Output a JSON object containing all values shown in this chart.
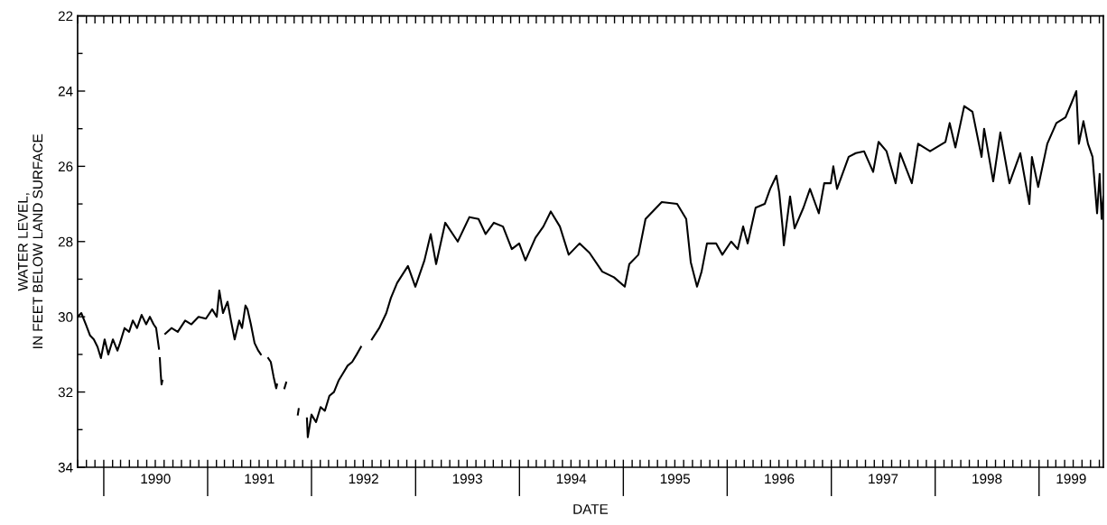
{
  "chart_data": {
    "type": "line",
    "xlabel": "DATE",
    "ylabel": "WATER LEVEL,\nIN FEET BELOW LAND SURFACE",
    "xlim": [
      "1989-10-01",
      "1999-08-15"
    ],
    "ylim": [
      34,
      22
    ],
    "yticks": [
      22,
      {
        "value": 23,
        "label": null
      },
      24,
      {
        "value": 25,
        "label": null
      },
      26,
      {
        "value": 27,
        "label": null
      },
      28,
      {
        "value": 29,
        "label": null
      },
      30,
      {
        "value": 31,
        "label": null
      },
      32,
      {
        "value": 33,
        "label": null
      },
      34
    ],
    "xticks": [
      {
        "value": "1990-01-01",
        "label": null
      },
      {
        "value": "1990-07-02",
        "label": "1990"
      },
      {
        "value": "1991-01-01",
        "label": null
      },
      {
        "value": "1991-07-02",
        "label": "1991"
      },
      {
        "value": "1992-01-01",
        "label": null
      },
      {
        "value": "1992-07-02",
        "label": "1992"
      },
      {
        "value": "1993-01-01",
        "label": null
      },
      {
        "value": "1993-07-02",
        "label": "1993"
      },
      {
        "value": "1994-01-01",
        "label": null
      },
      {
        "value": "1994-07-02",
        "label": "1994"
      },
      {
        "value": "1995-01-01",
        "label": null
      },
      {
        "value": "1995-07-02",
        "label": "1995"
      },
      {
        "value": "1996-01-01",
        "label": null
      },
      {
        "value": "1996-07-02",
        "label": "1996"
      },
      {
        "value": "1997-01-01",
        "label": null
      },
      {
        "value": "1997-07-02",
        "label": "1997"
      },
      {
        "value": "1998-01-01",
        "label": null
      },
      {
        "value": "1998-07-02",
        "label": "1998"
      },
      {
        "value": "1999-01-01",
        "label": null
      },
      {
        "value": "1999-04-24",
        "label": "1999"
      }
    ],
    "marker": "none",
    "line_style": "solid",
    "series": [
      {
        "color": "#000000",
        "x": [
          "1989-10-01",
          "1989-10-14",
          "1989-10-30",
          "1989-11-14",
          "1989-11-27",
          "1989-12-10",
          "1989-12-22",
          "1990-01-04",
          "1990-01-17",
          "1990-02-02",
          "1990-02-18",
          "1990-02-27",
          "1990-03-15",
          "1990-03-31",
          "1990-04-13",
          "1990-04-28",
          "1990-05-14",
          "1990-05-30",
          "1990-06-12",
          "1990-06-25",
          "1990-07-04",
          "1990-07-14",
          "1990-07-15",
          "1990-07-17",
          "1990-07-20",
          "1990-07-23",
          "1990-07-26",
          "1990-07-29",
          "1990-08-05",
          "1990-08-27",
          "1990-09-18",
          "1990-10-14",
          "1990-11-05",
          "1990-11-30",
          "1990-12-26",
          "1991-01-17",
          "1991-02-02",
          "1991-02-11",
          "1991-02-24",
          "1991-03-12",
          "1991-03-24",
          "1991-04-06",
          "1991-04-22",
          "1991-05-02",
          "1991-05-14",
          "1991-05-21",
          "1991-06-02",
          "1991-06-15",
          "1991-06-28",
          "1991-07-07",
          "1991-07-15",
          "1991-08-02",
          "1991-08-11",
          "1991-08-21",
          "1991-08-30",
          "1991-09-02",
          "1991-09-15",
          "1991-09-28",
          "1991-10-04",
          "1991-10-20",
          "1991-11-14",
          "1991-11-17",
          "1991-11-25",
          "1991-12-16",
          "1991-12-19",
          "1992-01-01",
          "1992-01-17",
          "1992-02-02",
          "1992-02-17",
          "1992-03-04",
          "1992-03-20",
          "1992-04-05",
          "1992-04-21",
          "1992-05-07",
          "1992-05-23",
          "1992-06-08",
          "1992-06-23",
          "1992-07-05",
          "1992-07-31",
          "1992-08-26",
          "1992-09-20",
          "1992-10-06",
          "1992-10-28",
          "1992-12-05",
          "1992-12-31",
          "1993-02-01",
          "1993-02-23",
          "1993-03-14",
          "1993-04-15",
          "1993-05-29",
          "1993-07-09",
          "1993-08-10",
          "1993-09-04",
          "1993-10-03",
          "1993-11-04",
          "1993-12-05",
          "1993-12-31",
          "1994-01-22",
          "1994-02-26",
          "1994-03-26",
          "1994-04-21",
          "1994-05-23",
          "1994-06-23",
          "1994-07-31",
          "1994-09-04",
          "1994-10-19",
          "1994-11-29",
          "1995-01-06",
          "1995-01-22",
          "1995-02-23",
          "1995-03-20",
          "1995-05-16",
          "1995-07-09",
          "1995-08-10",
          "1995-08-26",
          "1995-09-17",
          "1995-10-03",
          "1995-10-22",
          "1995-11-23",
          "1995-12-15",
          "1996-01-15",
          "1996-02-07",
          "1996-02-26",
          "1996-03-13",
          "1996-04-10",
          "1996-05-12",
          "1996-05-31",
          "1996-06-22",
          "1996-07-02",
          "1996-07-14",
          "1996-07-18",
          "1996-08-09",
          "1996-08-25",
          "1996-09-25",
          "1996-10-18",
          "1996-11-18",
          "1996-12-07",
          "1996-12-30",
          "1997-01-08",
          "1997-01-21",
          "1997-03-03",
          "1997-03-28",
          "1997-04-26",
          "1997-05-28",
          "1997-06-16",
          "1997-07-14",
          "1997-08-15",
          "1997-08-31",
          "1997-10-11",
          "1997-11-02",
          "1997-12-14",
          "1998-02-06",
          "1998-02-21",
          "1998-03-13",
          "1998-04-13",
          "1998-05-12",
          "1998-06-13",
          "1998-06-22",
          "1998-07-24",
          "1998-08-18",
          "1998-09-19",
          "1998-10-27",
          "1998-11-28",
          "1998-12-07",
          "1998-12-29",
          "1999-01-30",
          "1999-03-03",
          "1999-04-04",
          "1999-04-26",
          "1999-05-12",
          "1999-05-21",
          "1999-06-06",
          "1999-06-22",
          "1999-07-08",
          "1999-07-24",
          "1999-08-02",
          "1999-08-09",
          "1999-08-15"
        ],
        "values": [
          30.0,
          29.9,
          30.2,
          30.5,
          30.6,
          30.8,
          31.1,
          30.6,
          31.0,
          30.6,
          30.9,
          30.7,
          30.3,
          30.4,
          30.1,
          30.3,
          29.95,
          30.2,
          30.0,
          30.2,
          30.3,
          30.85,
          null,
          31.1,
          31.5,
          31.8,
          31.7,
          null,
          30.45,
          30.3,
          30.4,
          30.1,
          30.2,
          30.0,
          30.05,
          29.8,
          30.0,
          29.3,
          29.9,
          29.6,
          30.1,
          30.6,
          30.1,
          30.3,
          29.7,
          29.8,
          30.2,
          30.7,
          30.9,
          31.0,
          null,
          31.1,
          31.2,
          31.6,
          31.9,
          31.8,
          null,
          31.9,
          31.75,
          null,
          32.6,
          32.45,
          null,
          32.7,
          33.2,
          32.6,
          32.8,
          32.4,
          32.5,
          32.1,
          32.0,
          31.7,
          31.5,
          31.3,
          31.2,
          31.0,
          30.8,
          null,
          30.6,
          30.3,
          29.9,
          29.5,
          29.1,
          28.65,
          29.2,
          28.5,
          27.8,
          28.6,
          27.5,
          28.0,
          27.35,
          27.4,
          27.8,
          27.5,
          27.6,
          28.2,
          28.05,
          28.5,
          27.9,
          27.6,
          27.2,
          27.6,
          28.35,
          28.05,
          28.3,
          28.8,
          28.95,
          29.2,
          28.6,
          28.35,
          27.4,
          26.95,
          27.0,
          27.4,
          28.55,
          29.2,
          28.8,
          28.05,
          28.05,
          28.35,
          28.0,
          28.2,
          27.6,
          28.05,
          27.1,
          27.0,
          26.6,
          26.25,
          26.7,
          27.65,
          28.1,
          26.8,
          27.65,
          27.1,
          26.6,
          27.25,
          26.45,
          26.45,
          26.0,
          26.6,
          25.75,
          25.65,
          25.6,
          26.15,
          25.35,
          25.6,
          26.45,
          25.65,
          26.45,
          25.4,
          25.6,
          25.35,
          24.85,
          25.5,
          24.4,
          24.55,
          25.75,
          25.0,
          26.4,
          25.1,
          26.45,
          25.65,
          27.0,
          25.75,
          26.55,
          25.4,
          24.85,
          24.7,
          24.3,
          24.0,
          25.4,
          24.8,
          25.4,
          25.75,
          27.25,
          26.2,
          27.4,
          26.8
        ]
      }
    ]
  }
}
